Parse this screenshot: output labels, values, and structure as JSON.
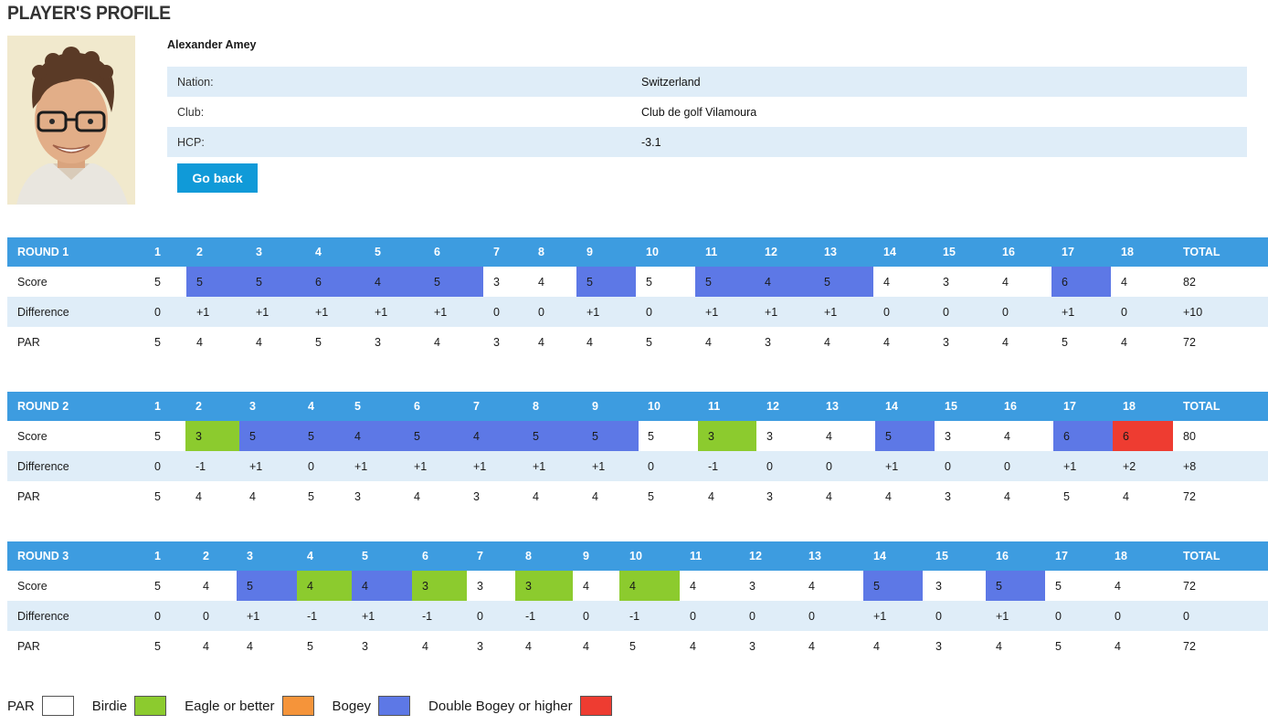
{
  "page": {
    "title": "PLAYER'S PROFILE"
  },
  "player": {
    "name": "Alexander Amey",
    "fields": [
      {
        "label": "Nation:",
        "value": "Switzerland"
      },
      {
        "label": "Club:",
        "value": "Club de golf Vilamoura"
      },
      {
        "label": "HCP:",
        "value": "-3.1"
      }
    ],
    "go_back_label": "Go back"
  },
  "colors": {
    "header": "#3d9ce0",
    "shaded": "#dfedf8",
    "par": "#ffffff",
    "birdie": "#8ccb2e",
    "eagle": "#f5943a",
    "bogey": "#5d78e6",
    "double": "#ee3c31",
    "button": "#109ad8"
  },
  "rounds": [
    {
      "title": "ROUND 1",
      "holes": [
        "1",
        "2",
        "3",
        "4",
        "5",
        "6",
        "7",
        "8",
        "9",
        "10",
        "11",
        "12",
        "13",
        "14",
        "15",
        "16",
        "17",
        "18",
        "TOTAL"
      ],
      "score_label": "Score",
      "score": [
        "5",
        "5",
        "5",
        "6",
        "4",
        "5",
        "3",
        "4",
        "5",
        "5",
        "5",
        "4",
        "5",
        "4",
        "3",
        "4",
        "6",
        "4",
        "82"
      ],
      "score_type": [
        "par",
        "bogey",
        "bogey",
        "bogey",
        "bogey",
        "bogey",
        "par",
        "par",
        "bogey",
        "par",
        "bogey",
        "bogey",
        "bogey",
        "par",
        "par",
        "par",
        "bogey",
        "par",
        "total"
      ],
      "difference_label": "Difference",
      "difference": [
        "0",
        "+1",
        "+1",
        "+1",
        "+1",
        "+1",
        "0",
        "0",
        "+1",
        "0",
        "+1",
        "+1",
        "+1",
        "0",
        "0",
        "0",
        "+1",
        "0",
        "+10"
      ],
      "par_label": "PAR",
      "par": [
        "5",
        "4",
        "4",
        "5",
        "3",
        "4",
        "3",
        "4",
        "4",
        "5",
        "4",
        "3",
        "4",
        "4",
        "3",
        "4",
        "5",
        "4",
        "72"
      ]
    },
    {
      "title": "ROUND 2",
      "holes": [
        "1",
        "2",
        "3",
        "4",
        "5",
        "6",
        "7",
        "8",
        "9",
        "10",
        "11",
        "12",
        "13",
        "14",
        "15",
        "16",
        "17",
        "18",
        "TOTAL"
      ],
      "score_label": "Score",
      "score": [
        "5",
        "3",
        "5",
        "5",
        "4",
        "5",
        "4",
        "5",
        "5",
        "5",
        "3",
        "3",
        "4",
        "5",
        "3",
        "4",
        "6",
        "6",
        "80"
      ],
      "score_type": [
        "par",
        "birdie",
        "bogey",
        "par",
        "bogey",
        "bogey",
        "bogey",
        "bogey",
        "bogey",
        "par",
        "birdie",
        "par",
        "par",
        "bogey",
        "par",
        "par",
        "bogey",
        "double",
        "total"
      ],
      "difference_label": "Difference",
      "difference": [
        "0",
        "-1",
        "+1",
        "0",
        "+1",
        "+1",
        "+1",
        "+1",
        "+1",
        "0",
        "-1",
        "0",
        "0",
        "+1",
        "0",
        "0",
        "+1",
        "+2",
        "+8"
      ],
      "par_label": "PAR",
      "par": [
        "5",
        "4",
        "4",
        "5",
        "3",
        "4",
        "3",
        "4",
        "4",
        "5",
        "4",
        "3",
        "4",
        "4",
        "3",
        "4",
        "5",
        "4",
        "72"
      ]
    },
    {
      "title": "ROUND 3",
      "holes": [
        "1",
        "2",
        "3",
        "4",
        "5",
        "6",
        "7",
        "8",
        "9",
        "10",
        "11",
        "12",
        "13",
        "14",
        "15",
        "16",
        "17",
        "18",
        "TOTAL"
      ],
      "score_label": "Score",
      "score": [
        "5",
        "4",
        "5",
        "4",
        "4",
        "3",
        "3",
        "3",
        "4",
        "4",
        "4",
        "3",
        "4",
        "5",
        "3",
        "5",
        "5",
        "4",
        "72"
      ],
      "score_type": [
        "par",
        "par",
        "bogey",
        "birdie",
        "bogey",
        "birdie",
        "par",
        "birdie",
        "par",
        "birdie",
        "par",
        "par",
        "par",
        "bogey",
        "par",
        "bogey",
        "par",
        "par",
        "total"
      ],
      "difference_label": "Difference",
      "difference": [
        "0",
        "0",
        "+1",
        "-1",
        "+1",
        "-1",
        "0",
        "-1",
        "0",
        "-1",
        "0",
        "0",
        "0",
        "+1",
        "0",
        "+1",
        "0",
        "0",
        "0"
      ],
      "par_label": "PAR",
      "par": [
        "5",
        "4",
        "4",
        "5",
        "3",
        "4",
        "3",
        "4",
        "4",
        "5",
        "4",
        "3",
        "4",
        "4",
        "3",
        "4",
        "5",
        "4",
        "72"
      ]
    }
  ],
  "legend": [
    {
      "label": "PAR",
      "color": "#ffffff"
    },
    {
      "label": "Birdie",
      "color": "#8ccb2e"
    },
    {
      "label": "Eagle or better",
      "color": "#f5943a"
    },
    {
      "label": "Bogey",
      "color": "#5d78e6"
    },
    {
      "label": "Double Bogey or higher",
      "color": "#ee3c31"
    }
  ]
}
